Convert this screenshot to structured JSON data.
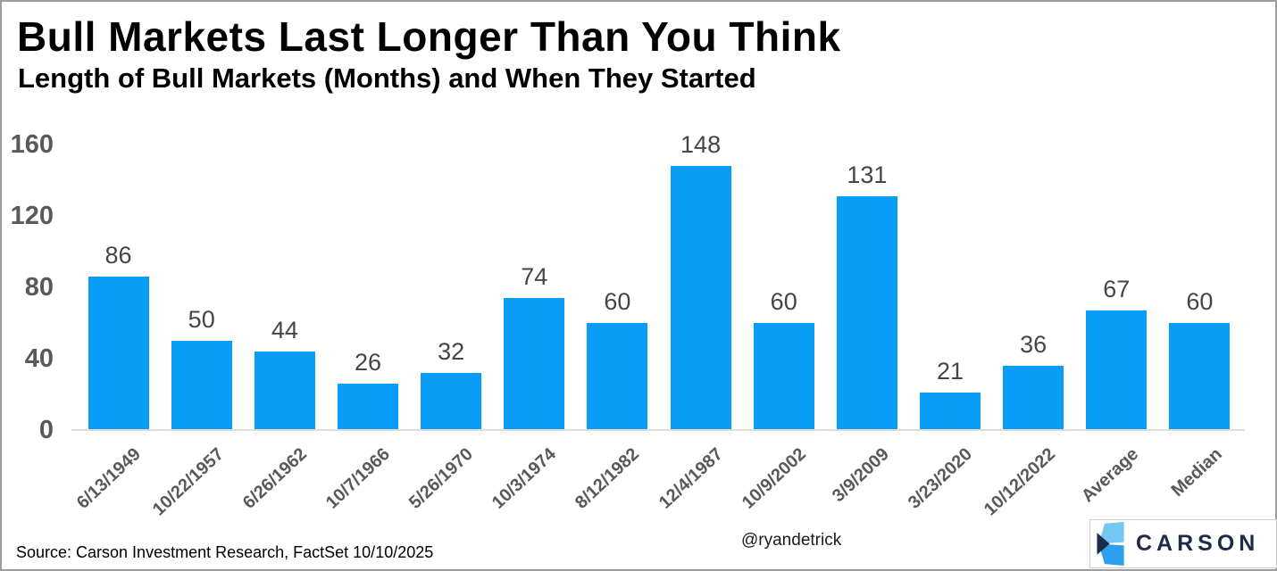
{
  "chart_data": {
    "type": "bar",
    "title": "Bull Markets Last Longer Than You Think",
    "subtitle": "Length of Bull Markets (Months) and When They Started",
    "categories": [
      "6/13/1949",
      "10/22/1957",
      "6/26/1962",
      "10/7/1966",
      "5/26/1970",
      "10/3/1974",
      "8/12/1982",
      "12/4/1987",
      "10/9/2002",
      "3/9/2009",
      "3/23/2020",
      "10/12/2022",
      "Average",
      "Median"
    ],
    "values": [
      86,
      50,
      44,
      26,
      32,
      74,
      60,
      148,
      60,
      131,
      21,
      36,
      67,
      60
    ],
    "xlabel": "",
    "ylabel": "",
    "yticks": [
      0,
      40,
      80,
      120,
      160
    ],
    "ylim": [
      0,
      170
    ],
    "grid": false,
    "legend": false,
    "value_labels": true,
    "x_tick_rotation": 43
  },
  "footer": {
    "source": "Source: Carson Investment Research, FactSet 10/10/2025",
    "handle": "@ryandetrick",
    "logo_text": "CARSON"
  },
  "colors": {
    "bar": "#0a9df7",
    "axis_label": "#595959",
    "value_label": "#454545",
    "baseline": "#dcdcdc",
    "logo_navy": "#1b2b49",
    "logo_light_blue": "#74c7f3",
    "logo_mid_blue": "#2d9ff0",
    "border": "#9e9e9e"
  }
}
